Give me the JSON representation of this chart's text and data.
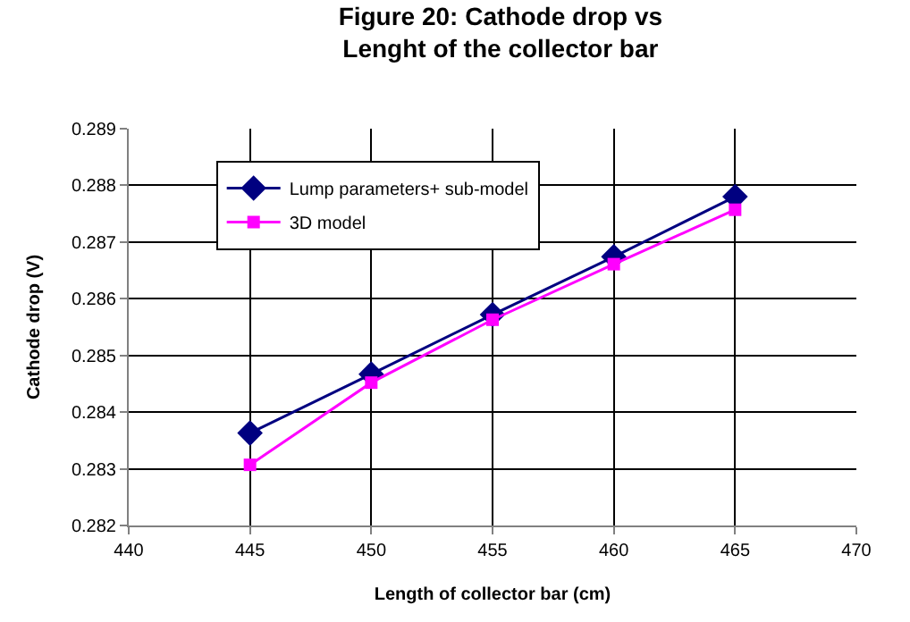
{
  "chart_data": {
    "type": "line",
    "title": "Figure 20: Cathode drop vs\nLenght of the collector bar",
    "xlabel": "Length of collector bar (cm)",
    "ylabel": "Cathode drop (V)",
    "x": [
      445,
      450,
      455,
      460,
      465
    ],
    "series": [
      {
        "name": "Lump parameters+ sub-model",
        "color": "#000080",
        "marker": "diamond",
        "values": [
          0.28363,
          0.28467,
          0.28572,
          0.28674,
          0.2878
        ]
      },
      {
        "name": "3D model",
        "color": "#ff00ff",
        "marker": "square",
        "values": [
          0.28307,
          0.28452,
          0.28563,
          0.28661,
          0.28757
        ]
      }
    ],
    "xlim": [
      440,
      470
    ],
    "xticks": [
      440,
      445,
      450,
      455,
      460,
      465,
      470
    ],
    "ylim": [
      0.282,
      0.289
    ],
    "yticks": [
      0.282,
      0.283,
      0.284,
      0.285,
      0.286,
      0.287,
      0.288,
      0.289
    ],
    "grid": true,
    "legend": "top left",
    "line_style": "solid"
  }
}
